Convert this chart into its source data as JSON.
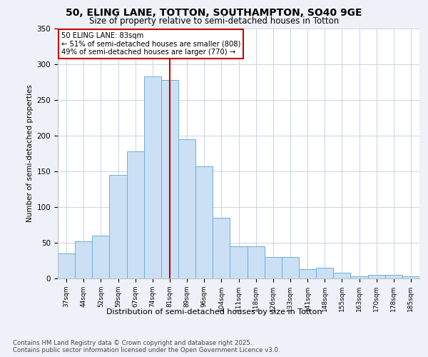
{
  "title1": "50, ELING LANE, TOTTON, SOUTHAMPTON, SO40 9GE",
  "title2": "Size of property relative to semi-detached houses in Totton",
  "xlabel": "Distribution of semi-detached houses by size in Totton",
  "ylabel": "Number of semi-detached properties",
  "categories": [
    "37sqm",
    "44sqm",
    "52sqm",
    "59sqm",
    "67sqm",
    "74sqm",
    "81sqm",
    "89sqm",
    "96sqm",
    "104sqm",
    "111sqm",
    "118sqm",
    "126sqm",
    "133sqm",
    "141sqm",
    "148sqm",
    "155sqm",
    "163sqm",
    "170sqm",
    "178sqm",
    "185sqm"
  ],
  "values": [
    35,
    52,
    60,
    145,
    178,
    283,
    278,
    195,
    157,
    85,
    45,
    45,
    30,
    30,
    13,
    15,
    8,
    3,
    5,
    5,
    3
  ],
  "bar_color": "#cce0f5",
  "bar_edge_color": "#6aaed6",
  "highlight_index": 6,
  "highlight_line_color": "#cc0000",
  "annotation_text": "50 ELING LANE: 83sqm\n← 51% of semi-detached houses are smaller (808)\n49% of semi-detached houses are larger (770) →",
  "annotation_box_color": "#cc0000",
  "ylim": [
    0,
    350
  ],
  "yticks": [
    0,
    50,
    100,
    150,
    200,
    250,
    300,
    350
  ],
  "footer": "Contains HM Land Registry data © Crown copyright and database right 2025.\nContains public sector information licensed under the Open Government Licence v3.0.",
  "bg_color": "#eef2f8",
  "plot_bg_color": "#ffffff",
  "grid_color": "#c8d4e8"
}
